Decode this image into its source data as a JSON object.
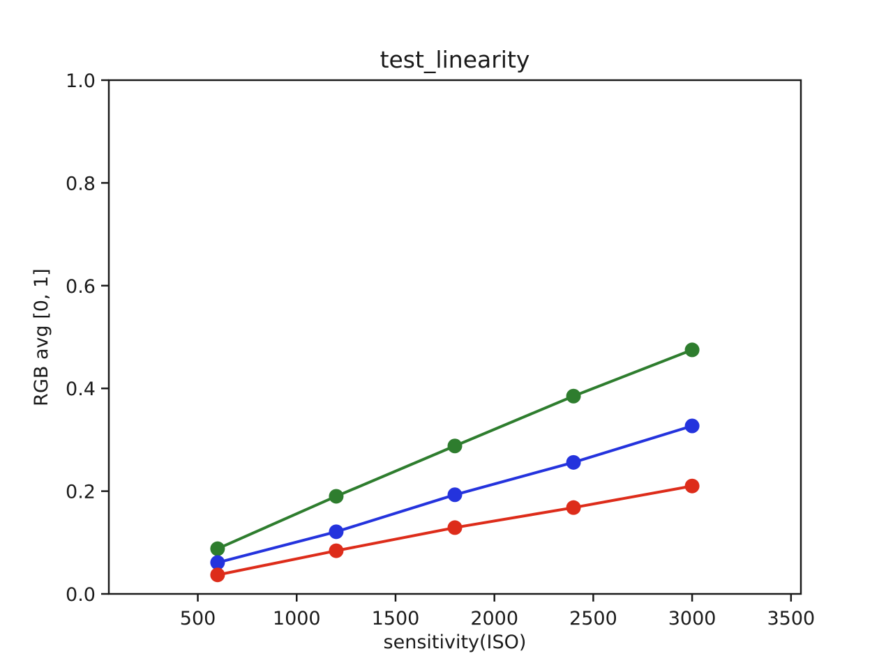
{
  "figure": {
    "background": "#ffffff"
  },
  "chart_data": {
    "type": "line",
    "title": "test_linearity",
    "xlabel": "sensitivity(ISO)",
    "ylabel": "RGB avg [0, 1]",
    "x": [
      600,
      1200,
      1800,
      2400,
      3000
    ],
    "series": [
      {
        "name": "green",
        "color": "#2e7d2e",
        "marker": "o",
        "values": [
          0.088,
          0.19,
          0.288,
          0.385,
          0.475
        ]
      },
      {
        "name": "blue",
        "color": "#2433dd",
        "marker": "o",
        "values": [
          0.061,
          0.121,
          0.193,
          0.256,
          0.327
        ]
      },
      {
        "name": "red",
        "color": "#dd2c1a",
        "marker": "o",
        "values": [
          0.037,
          0.084,
          0.129,
          0.168,
          0.21
        ]
      }
    ],
    "xlim": [
      50,
      3550
    ],
    "ylim": [
      0,
      1
    ],
    "xticks": [
      500,
      1000,
      1500,
      2000,
      2500,
      3000,
      3500
    ],
    "ytick_labels": [
      "0.0",
      "0.2",
      "0.4",
      "0.6",
      "0.8",
      "1.0"
    ],
    "grid": false,
    "legend": null,
    "axis_color": "#1a1a1a"
  }
}
